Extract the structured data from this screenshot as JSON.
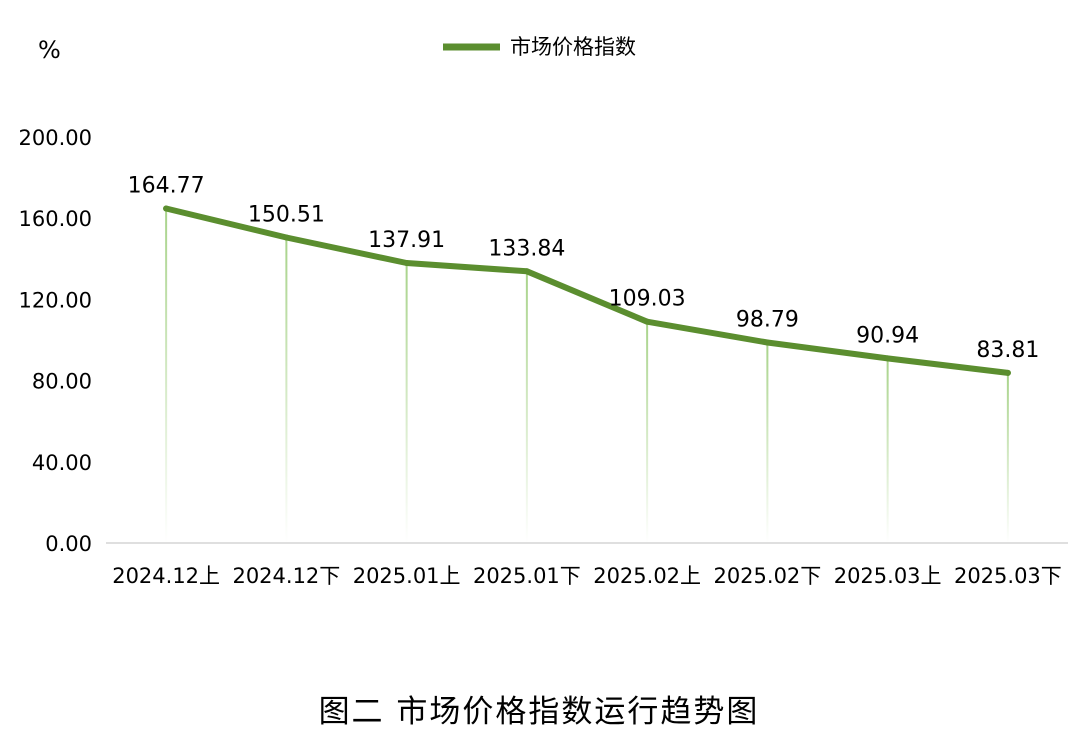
{
  "chart_data": {
    "type": "line",
    "ylabel": "%",
    "ylim": [
      0,
      200
    ],
    "yticks": [
      "0.00",
      "40.00",
      "80.00",
      "120.00",
      "160.00",
      "200.00"
    ],
    "categories": [
      "2024.12上",
      "2024.12下",
      "2025.01上",
      "2025.01下",
      "2025.02上",
      "2025.02下",
      "2025.03上",
      "2025.03下"
    ],
    "series": [
      {
        "name": "市场价格指数",
        "values": [
          164.77,
          150.51,
          137.91,
          133.84,
          109.03,
          98.79,
          90.94,
          83.81
        ],
        "labels": [
          "164.77",
          "150.51",
          "137.91",
          "133.84",
          "109.03",
          "98.79",
          "90.94",
          "83.81"
        ]
      }
    ],
    "legend_position": "top",
    "grid": false,
    "colors": {
      "line": "#5b8e2f",
      "drop_line": "#a8d38a",
      "axis": "#bfbfbf"
    }
  },
  "caption": "图二  市场价格指数运行趋势图"
}
